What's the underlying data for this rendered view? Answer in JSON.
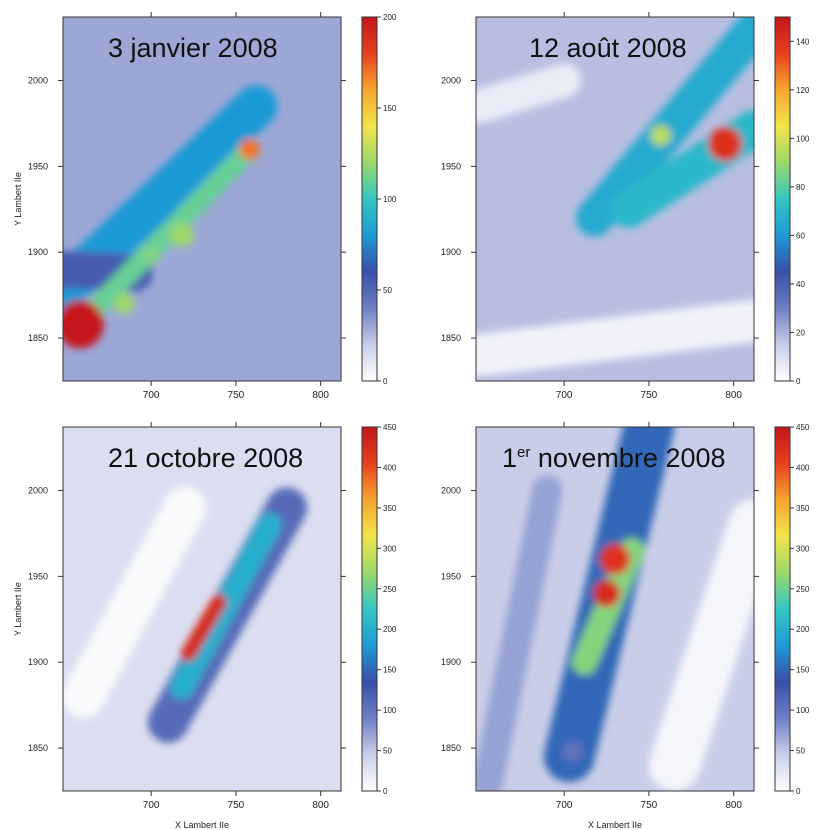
{
  "colors": {
    "scale": [
      "#ffffff",
      "#c9cee8",
      "#6e7fc4",
      "#3a4fa8",
      "#1f9ad6",
      "#33c6c2",
      "#9bd86a",
      "#f2e54a",
      "#f7a52e",
      "#e8411f",
      "#c4161c"
    ]
  },
  "chart_data": [
    {
      "type": "heatmap",
      "title": "3 janvier 2008",
      "xlabel": "",
      "ylabel": "Y Lambert IIe",
      "xlim": [
        648,
        812
      ],
      "ylim": [
        1825,
        2037
      ],
      "xticks": [
        "700",
        "750",
        "800"
      ],
      "xtick_values": [
        700,
        750,
        800
      ],
      "yticks": [
        "1850",
        "1900",
        "1950",
        "2000"
      ],
      "ytick_values": [
        1850,
        1900,
        1950,
        2000
      ],
      "colorbar": {
        "max": 200,
        "ticks": [
          "0",
          "50",
          "100",
          "150",
          "200"
        ],
        "tick_values": [
          0,
          50,
          100,
          150,
          200
        ]
      },
      "background": 30,
      "features": [
        {
          "kind": "band",
          "x1": 645,
          "y1": 1875,
          "x2": 762,
          "y2": 1985,
          "width": 25,
          "value": 80
        },
        {
          "kind": "band",
          "x1": 648,
          "y1": 1890,
          "x2": 690,
          "y2": 1888,
          "width": 22,
          "value": 55
        },
        {
          "kind": "band",
          "x1": 662,
          "y1": 1862,
          "x2": 758,
          "y2": 1960,
          "width": 12,
          "value": 110
        },
        {
          "kind": "spot",
          "x": 658,
          "y": 1858,
          "r": 14,
          "value": 200
        },
        {
          "kind": "spot",
          "x": 758,
          "y": 1960,
          "r": 6,
          "value": 170
        },
        {
          "kind": "spot",
          "x": 718,
          "y": 1910,
          "r": 7,
          "value": 120
        },
        {
          "kind": "spot",
          "x": 700,
          "y": 1898,
          "r": 5,
          "value": 115
        },
        {
          "kind": "spot",
          "x": 684,
          "y": 1870,
          "r": 6,
          "value": 120
        }
      ]
    },
    {
      "type": "heatmap",
      "title": "12 août 2008",
      "xlabel": "",
      "ylabel": "",
      "xlim": [
        648,
        812
      ],
      "ylim": [
        1825,
        2037
      ],
      "xticks": [
        "700",
        "750",
        "800"
      ],
      "xtick_values": [
        700,
        750,
        800
      ],
      "yticks": [
        "1850",
        "1900",
        "1950",
        "2000"
      ],
      "ytick_values": [
        1850,
        1900,
        1950,
        2000
      ],
      "colorbar": {
        "max": 150,
        "ticks": [
          "0",
          "20",
          "40",
          "60",
          "80",
          "100",
          "120",
          "140"
        ],
        "tick_values": [
          0,
          20,
          40,
          60,
          80,
          100,
          120,
          140
        ]
      },
      "background": 18,
      "features": [
        {
          "kind": "band",
          "x1": 718,
          "y1": 1920,
          "x2": 812,
          "y2": 2030,
          "width": 22,
          "value": 65
        },
        {
          "kind": "band",
          "x1": 738,
          "y1": 1925,
          "x2": 812,
          "y2": 1972,
          "width": 22,
          "value": 70
        },
        {
          "kind": "spot",
          "x": 795,
          "y": 1963,
          "r": 10,
          "value": 140
        },
        {
          "kind": "spot",
          "x": 757,
          "y": 1968,
          "r": 6,
          "value": 95
        },
        {
          "kind": "band",
          "x1": 650,
          "y1": 1840,
          "x2": 812,
          "y2": 1860,
          "width": 25,
          "value": 4
        },
        {
          "kind": "band",
          "x1": 650,
          "y1": 1985,
          "x2": 700,
          "y2": 2000,
          "width": 20,
          "value": 6
        }
      ]
    },
    {
      "type": "heatmap",
      "title": "21 octobre 2008",
      "xlabel": "X Lambert IIe",
      "ylabel": "Y Lambert IIe",
      "xlim": [
        648,
        812
      ],
      "ylim": [
        1825,
        2037
      ],
      "xticks": [
        "700",
        "750",
        "800"
      ],
      "xtick_values": [
        700,
        750,
        800
      ],
      "yticks": [
        "1850",
        "1900",
        "1950",
        "2000"
      ],
      "ytick_values": [
        1850,
        1900,
        1950,
        2000
      ],
      "colorbar": {
        "max": 450,
        "ticks": [
          "0",
          "50",
          "100",
          "150",
          "200",
          "250",
          "300",
          "350",
          "400",
          "450"
        ],
        "tick_values": [
          0,
          50,
          100,
          150,
          200,
          250,
          300,
          350,
          400,
          450
        ]
      },
      "background": 30,
      "features": [
        {
          "kind": "band",
          "x1": 710,
          "y1": 1865,
          "x2": 780,
          "y2": 1990,
          "width": 24,
          "value": 110
        },
        {
          "kind": "band",
          "x1": 718,
          "y1": 1885,
          "x2": 770,
          "y2": 1980,
          "width": 14,
          "value": 200
        },
        {
          "kind": "band",
          "x1": 722,
          "y1": 1905,
          "x2": 740,
          "y2": 1935,
          "width": 9,
          "value": 430
        },
        {
          "kind": "band",
          "x1": 660,
          "y1": 1880,
          "x2": 720,
          "y2": 1990,
          "width": 25,
          "value": 5
        }
      ]
    },
    {
      "type": "heatmap",
      "title": "1er novembre 2008",
      "xlabel": "X Lambert IIe",
      "ylabel": "",
      "xlim": [
        648,
        812
      ],
      "ylim": [
        1825,
        2037
      ],
      "xticks": [
        "700",
        "750",
        "800"
      ],
      "xtick_values": [
        700,
        750,
        800
      ],
      "yticks": [
        "1850",
        "1900",
        "1950",
        "2000"
      ],
      "ytick_values": [
        1850,
        1900,
        1950,
        2000
      ],
      "colorbar": {
        "max": 450,
        "ticks": [
          "0",
          "50",
          "100",
          "150",
          "200",
          "250",
          "300",
          "350",
          "400",
          "450"
        ],
        "tick_values": [
          0,
          50,
          100,
          150,
          200,
          250,
          300,
          350,
          400,
          450
        ]
      },
      "background": 45,
      "features": [
        {
          "kind": "band",
          "x1": 703,
          "y1": 1845,
          "x2": 750,
          "y2": 2037,
          "width": 30,
          "value": 150
        },
        {
          "kind": "band",
          "x1": 712,
          "y1": 1900,
          "x2": 740,
          "y2": 1965,
          "width": 15,
          "value": 260
        },
        {
          "kind": "spot",
          "x": 730,
          "y": 1960,
          "r": 9,
          "value": 420
        },
        {
          "kind": "spot",
          "x": 725,
          "y": 1940,
          "r": 8,
          "value": 430
        },
        {
          "kind": "spot",
          "x": 705,
          "y": 1848,
          "r": 6,
          "value": 100
        },
        {
          "kind": "band",
          "x1": 765,
          "y1": 1840,
          "x2": 812,
          "y2": 1980,
          "width": 30,
          "value": 8
        },
        {
          "kind": "band",
          "x1": 655,
          "y1": 1830,
          "x2": 690,
          "y2": 2000,
          "width": 18,
          "value": 70
        }
      ]
    }
  ]
}
